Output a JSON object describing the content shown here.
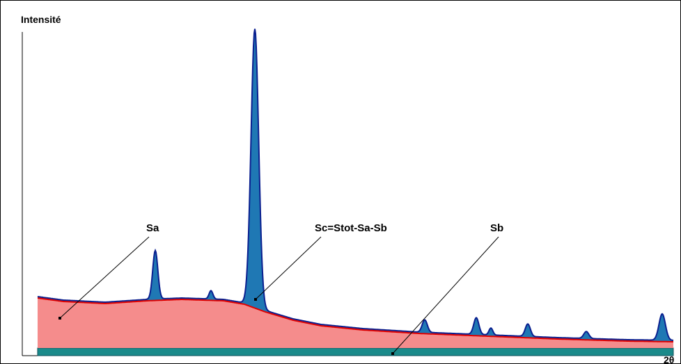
{
  "chart_data": {
    "type": "area",
    "ylabel": "Intensité",
    "xlabel": "2θ",
    "series": [
      {
        "name": "Sb",
        "role": "background-baseline",
        "color": "#1a8a8a"
      },
      {
        "name": "Sa",
        "role": "amorphous-halo",
        "color": "#f58c8c",
        "line_color": "#e00000"
      },
      {
        "name": "Sc=Stot-Sa-Sb",
        "role": "crystalline-peaks",
        "color": "#1f78b4",
        "line_color": "#0a1f8f"
      }
    ],
    "annotations": [
      {
        "text": "Sa",
        "target": "Sa"
      },
      {
        "text": "Sc=Stot-Sa-Sb",
        "target": "Sc=Stot-Sa-Sb"
      },
      {
        "text": "Sb",
        "target": "Sb"
      }
    ]
  }
}
